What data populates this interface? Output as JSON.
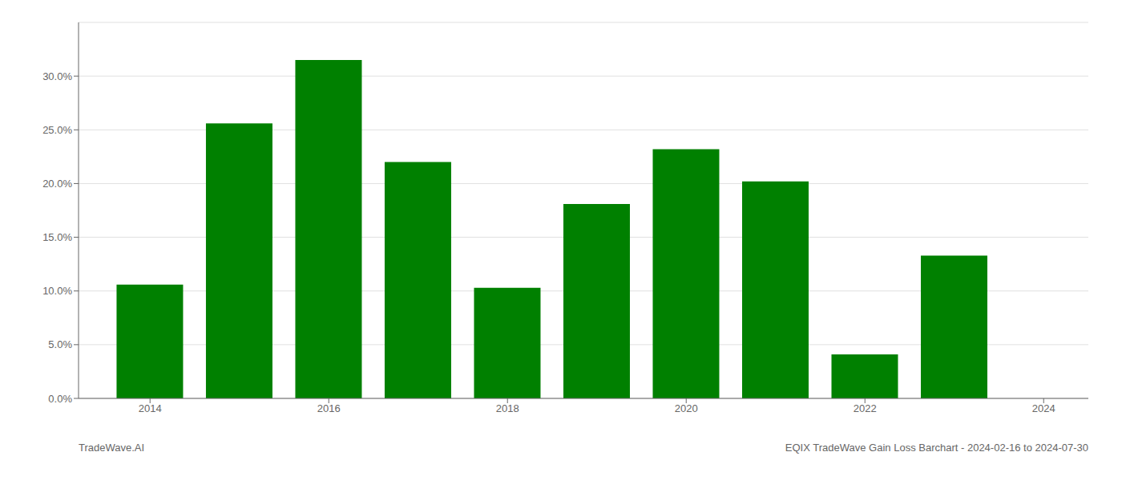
{
  "chart_data": {
    "type": "bar",
    "x": [
      2014,
      2015,
      2016,
      2017,
      2018,
      2019,
      2020,
      2021,
      2022,
      2023
    ],
    "values": [
      0.106,
      0.256,
      0.315,
      0.22,
      0.103,
      0.181,
      0.232,
      0.202,
      0.041,
      0.133
    ],
    "color": "#008000",
    "xlim": [
      2013.2,
      2024.5
    ],
    "xticks": [
      2014,
      2016,
      2018,
      2020,
      2022,
      2024
    ],
    "ylim": [
      0,
      0.35
    ],
    "yticks": [
      {
        "value": 0.0,
        "label": "0.0%"
      },
      {
        "value": 0.05,
        "label": "5.0%"
      },
      {
        "value": 0.1,
        "label": "10.0%"
      },
      {
        "value": 0.15,
        "label": "15.0%"
      },
      {
        "value": 0.2,
        "label": "20.0%"
      },
      {
        "value": 0.25,
        "label": "25.0%"
      },
      {
        "value": 0.3,
        "label": "30.0%"
      }
    ],
    "grid": true,
    "annotations": [
      "TradeWave.AI",
      "EQIX TradeWave Gain Loss Barchart - 2024-02-16 to 2024-07-30"
    ]
  }
}
